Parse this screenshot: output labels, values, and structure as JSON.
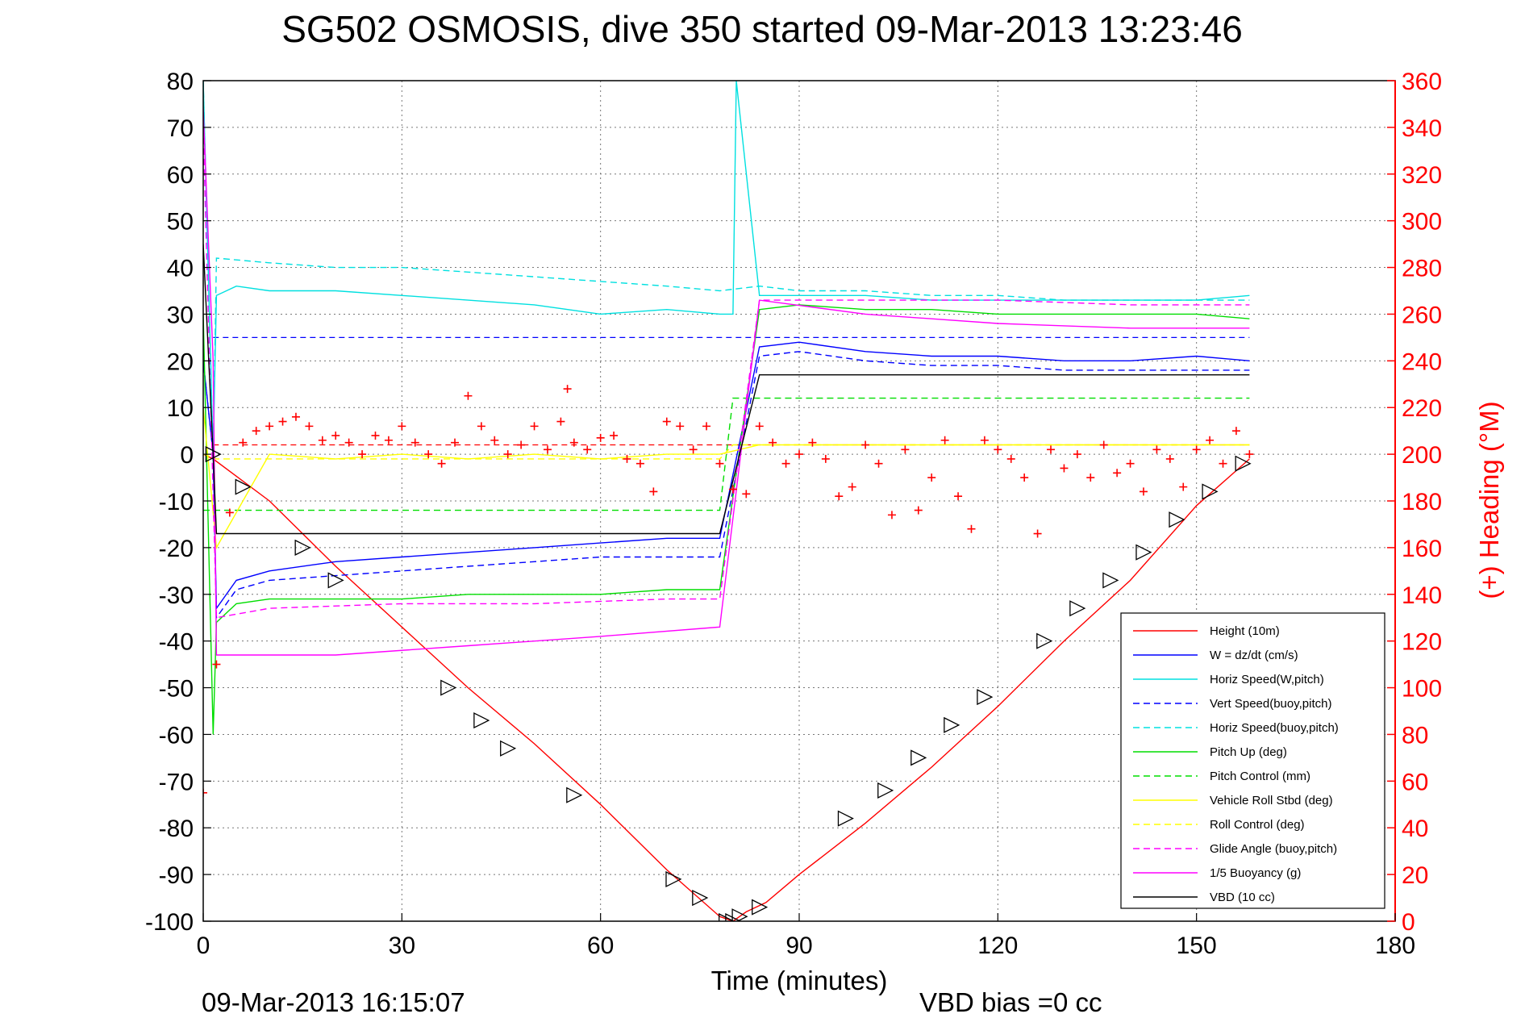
{
  "chart_data": {
    "type": "line",
    "title": "SG502 OSMOSIS, dive 350 started 09-Mar-2013 13:23:46",
    "xlabel": "Time (minutes)",
    "ylabel_right": "(+) Heading (°M)",
    "footer_left": "09-Mar-2013 16:15:07",
    "footer_right": "VBD bias =0 cc",
    "xlim": [
      0,
      180
    ],
    "ylim": [
      -100,
      80
    ],
    "ylim_right": [
      0,
      360
    ],
    "x_ticks": [
      0,
      30,
      60,
      90,
      120,
      150,
      180
    ],
    "y_ticks": [
      80,
      70,
      60,
      50,
      40,
      30,
      20,
      10,
      0,
      -10,
      -20,
      -30,
      -40,
      -50,
      -60,
      -70,
      -80,
      -90,
      -100
    ],
    "y_ticks_right": [
      360,
      340,
      320,
      300,
      280,
      260,
      240,
      220,
      200,
      180,
      160,
      140,
      120,
      100,
      80,
      60,
      40,
      20,
      0
    ],
    "grid": true,
    "legend_position": "lower-right",
    "series": [
      {
        "name": "Height (10m)",
        "color": "#ff0000",
        "style": "solid",
        "x": [
          0,
          1.5,
          10,
          20,
          30,
          40,
          50,
          60,
          70,
          78,
          80,
          82,
          85,
          90,
          100,
          110,
          120,
          130,
          140,
          150,
          158
        ],
        "y": [
          0,
          -1,
          -10,
          -24,
          -37,
          -50,
          -62,
          -75,
          -89,
          -99,
          -100,
          -98,
          -96,
          -90,
          -79,
          -67,
          -54,
          -40,
          -27,
          -11,
          -1
        ]
      },
      {
        "name": "W = dz/dt (cm/s)",
        "color": "#0000ff",
        "style": "solid",
        "x": [
          0,
          1.5,
          2,
          5,
          10,
          20,
          30,
          40,
          50,
          60,
          70,
          78,
          84,
          90,
          100,
          110,
          120,
          130,
          140,
          150,
          158
        ],
        "y": [
          20,
          0,
          -33,
          -27,
          -25,
          -23,
          -22,
          -21,
          -20,
          -19,
          -18,
          -18,
          23,
          24,
          22,
          21,
          21,
          20,
          20,
          21,
          20
        ]
      },
      {
        "name": "Horiz Speed(W,pitch)",
        "color": "#00e0e0",
        "style": "solid",
        "x": [
          0,
          1.5,
          2,
          5,
          10,
          20,
          30,
          40,
          50,
          60,
          70,
          78,
          80,
          80.5,
          84,
          90,
          100,
          110,
          120,
          130,
          140,
          150,
          158
        ],
        "y": [
          80,
          0,
          34,
          36,
          35,
          35,
          34,
          33,
          32,
          30,
          31,
          30,
          30,
          80,
          34,
          34,
          34,
          33,
          33,
          33,
          33,
          33,
          34
        ]
      },
      {
        "name": "Vert Speed(buoy,pitch)",
        "color": "#0000ff",
        "style": "dashed",
        "x": [
          0,
          1.5,
          2,
          5,
          10,
          20,
          30,
          40,
          50,
          60,
          70,
          78,
          84,
          90,
          100,
          110,
          120,
          130,
          140,
          150,
          158
        ],
        "y": [
          20,
          0,
          -35,
          -29,
          -27,
          -26,
          -25,
          -24,
          -23,
          -22,
          -22,
          -22,
          21,
          22,
          20,
          19,
          19,
          18,
          18,
          18,
          18
        ]
      },
      {
        "name": "Horiz Speed(buoy,pitch)",
        "color": "#00e0e0",
        "style": "dashed",
        "x": [
          0,
          1.5,
          2,
          10,
          20,
          30,
          40,
          50,
          60,
          70,
          78,
          84,
          90,
          100,
          110,
          120,
          130,
          140,
          150,
          158
        ],
        "y": [
          80,
          0,
          42,
          41,
          40,
          40,
          39,
          38,
          37,
          36,
          35,
          36,
          35,
          35,
          34,
          34,
          33,
          33,
          33,
          33
        ]
      },
      {
        "name": "Pitch Up (deg)",
        "color": "#00dd00",
        "style": "solid",
        "x": [
          0,
          1.5,
          2,
          5,
          10,
          20,
          30,
          40,
          50,
          60,
          70,
          78,
          84,
          90,
          100,
          110,
          120,
          130,
          140,
          150,
          158
        ],
        "y": [
          30,
          -60,
          -36,
          -32,
          -31,
          -31,
          -31,
          -30,
          -30,
          -30,
          -29,
          -29,
          31,
          32,
          31,
          31,
          30,
          30,
          30,
          30,
          29
        ]
      },
      {
        "name": "Pitch Control (mm)",
        "color": "#00dd00",
        "style": "dashed",
        "x": [
          0,
          2,
          78,
          80,
          158
        ],
        "y": [
          -12,
          -12,
          -12,
          12,
          12
        ]
      },
      {
        "name": "Vehicle Roll Stbd (deg)",
        "color": "#ffff00",
        "style": "solid",
        "x": [
          0,
          2,
          10,
          20,
          30,
          40,
          50,
          60,
          70,
          78,
          84,
          90,
          100,
          110,
          120,
          130,
          140,
          150,
          158
        ],
        "y": [
          10,
          -20,
          0,
          -1,
          0,
          -1,
          0,
          -1,
          0,
          0,
          2,
          2,
          2,
          2,
          2,
          2,
          2,
          2,
          2
        ]
      },
      {
        "name": "Roll Control (deg)",
        "color": "#ffff00",
        "style": "dashed",
        "x": [
          0,
          2,
          78,
          80,
          158
        ],
        "y": [
          0,
          -1,
          -1,
          2,
          2
        ]
      },
      {
        "name": "Glide Angle (buoy,pitch)",
        "color": "#ff00ff",
        "style": "dashed",
        "x": [
          0,
          2,
          10,
          30,
          50,
          70,
          78,
          84,
          100,
          120,
          140,
          158
        ],
        "y": [
          70,
          -35,
          -33,
          -32,
          -32,
          -31,
          -31,
          33,
          33,
          33,
          32,
          32
        ]
      },
      {
        "name": "1/5 Buoyancy (g)",
        "color": "#ff00ff",
        "style": "solid",
        "x": [
          0,
          1.5,
          2,
          20,
          40,
          60,
          78,
          84,
          100,
          120,
          140,
          158
        ],
        "y": [
          74,
          20,
          -43,
          -43,
          -41,
          -39,
          -37,
          33,
          30,
          28,
          27,
          27
        ]
      },
      {
        "name": "VBD (10 cc)",
        "color": "#000000",
        "style": "solid",
        "x": [
          0,
          1.5,
          2,
          78,
          84,
          158
        ],
        "y": [
          45,
          0,
          -17,
          -17,
          17,
          17
        ]
      }
    ],
    "heading": {
      "color": "#ff0000",
      "marker": "+",
      "axis": "right",
      "x": [
        0,
        2,
        4,
        6,
        8,
        10,
        12,
        14,
        16,
        18,
        20,
        22,
        24,
        26,
        28,
        30,
        32,
        34,
        36,
        38,
        40,
        42,
        44,
        46,
        48,
        50,
        52,
        54,
        55,
        56,
        58,
        60,
        62,
        64,
        66,
        68,
        70,
        72,
        74,
        76,
        78,
        80,
        82,
        84,
        86,
        88,
        90,
        92,
        94,
        96,
        98,
        100,
        102,
        104,
        106,
        108,
        110,
        112,
        114,
        116,
        118,
        120,
        122,
        124,
        126,
        128,
        130,
        132,
        134,
        136,
        138,
        140,
        142,
        144,
        146,
        148,
        150,
        152,
        154,
        156,
        158
      ],
      "y": [
        55,
        110,
        175,
        205,
        210,
        212,
        214,
        216,
        212,
        206,
        208,
        205,
        200,
        208,
        206,
        212,
        205,
        200,
        196,
        205,
        225,
        212,
        206,
        200,
        204,
        212,
        202,
        214,
        228,
        205,
        202,
        207,
        208,
        198,
        196,
        184,
        214,
        212,
        202,
        212,
        196,
        185,
        183,
        212,
        205,
        196,
        200,
        205,
        198,
        182,
        186,
        204,
        196,
        174,
        202,
        176,
        190,
        206,
        182,
        168,
        206,
        202,
        198,
        190,
        166,
        202,
        194,
        200,
        190,
        204,
        192,
        196,
        184,
        202,
        198,
        186,
        202,
        206,
        196,
        210,
        200
      ]
    },
    "turn_markers": {
      "color": "#000000",
      "marker": "triangle",
      "x": [
        1.5,
        6,
        15,
        20,
        37,
        42,
        46,
        56,
        71,
        75,
        79,
        80,
        81,
        84,
        97,
        103,
        108,
        113,
        118,
        127,
        132,
        137,
        142,
        147,
        152,
        157
      ],
      "y": [
        0,
        -7,
        -20,
        -27,
        -50,
        -57,
        -63,
        -73,
        -91,
        -95,
        -100,
        -100,
        -99,
        -97,
        -78,
        -72,
        -65,
        -58,
        -52,
        -40,
        -33,
        -27,
        -21,
        -14,
        -8,
        -2
      ]
    },
    "reference_lines": [
      {
        "name": "",
        "color": "#ff0000",
        "style": "dashed",
        "axis": "right",
        "y": 204
      },
      {
        "name": "",
        "color": "#0000ff",
        "style": "dashed",
        "y": 25
      }
    ]
  }
}
